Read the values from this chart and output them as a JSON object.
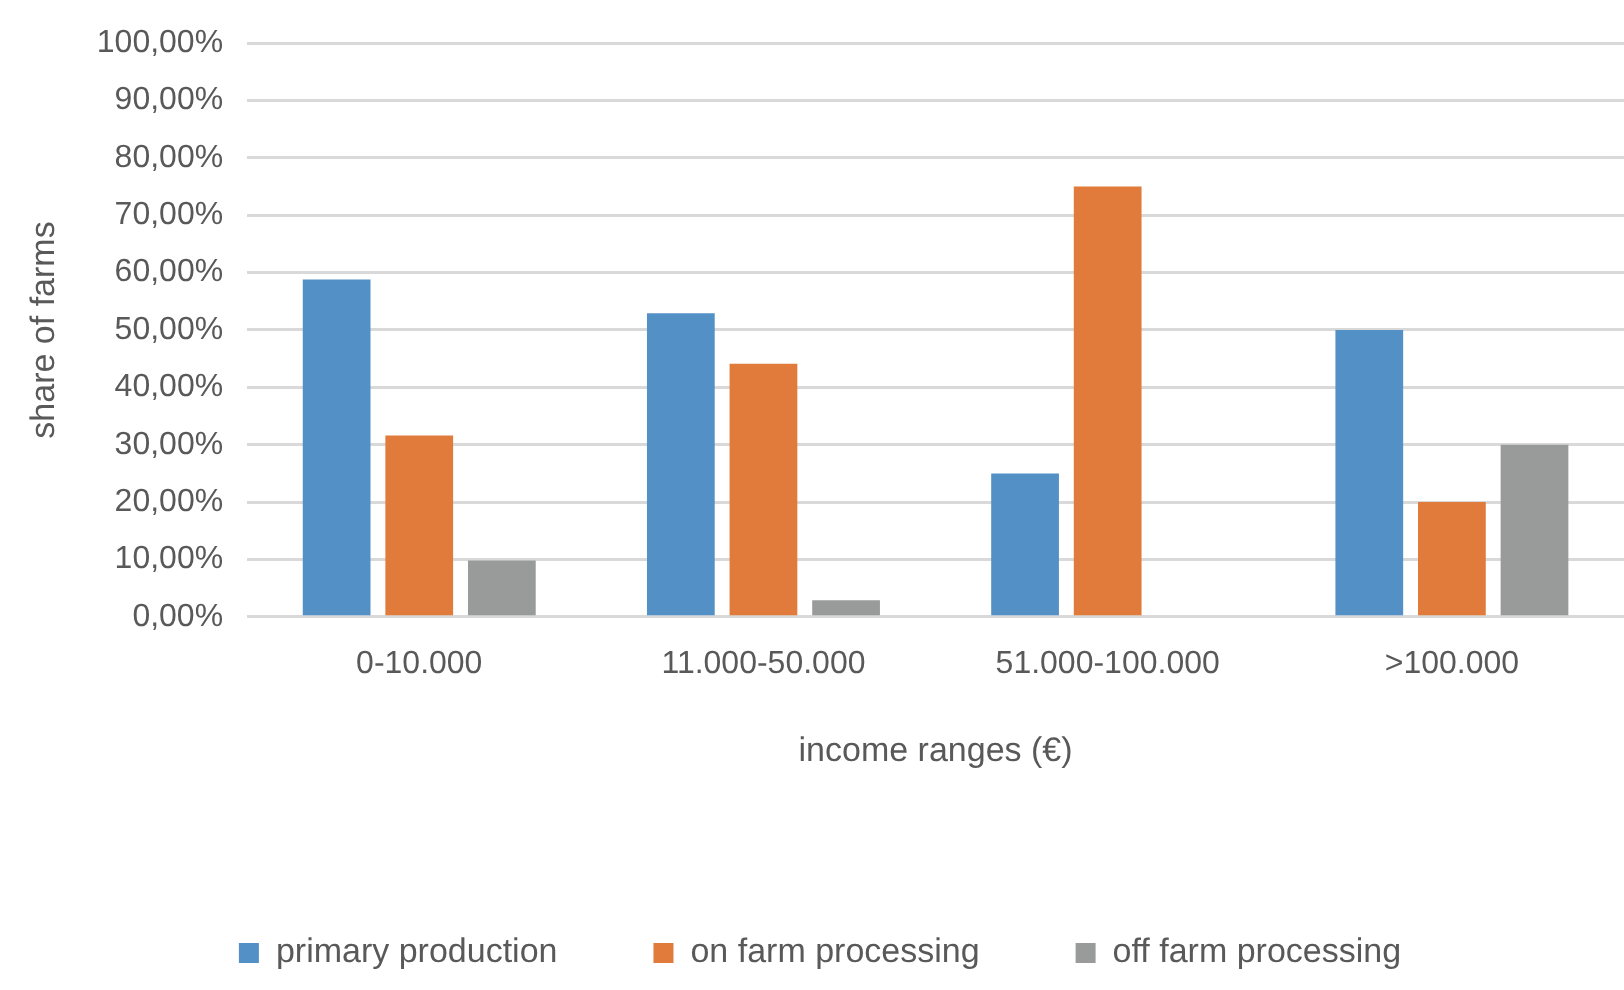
{
  "chart_data": {
    "type": "bar",
    "xlabel": "income ranges (€)",
    "ylabel": "share of farms",
    "categories": [
      "0-10.000",
      "11.000-50.000",
      "51.000-100.000",
      ">100.000"
    ],
    "series": [
      {
        "name": "primary production",
        "color": "#5390c6",
        "values": [
          58.8,
          52.9,
          25,
          50
        ]
      },
      {
        "name": "on farm processing",
        "color": "#e07b3b",
        "values": [
          31.6,
          44.1,
          75,
          20
        ]
      },
      {
        "name": "off farm processing",
        "color": "#999b9b",
        "values": [
          9.8,
          2.9,
          0,
          30
        ]
      }
    ],
    "ylim": [
      0,
      100
    ],
    "yticks": [
      {
        "value": 0,
        "label": "0,00%"
      },
      {
        "value": 10,
        "label": "10,00%"
      },
      {
        "value": 20,
        "label": "20,00%"
      },
      {
        "value": 30,
        "label": "30,00%"
      },
      {
        "value": 40,
        "label": "40,00%"
      },
      {
        "value": 50,
        "label": "50,00%"
      },
      {
        "value": 60,
        "label": "60,00%"
      },
      {
        "value": 70,
        "label": "70,00%"
      },
      {
        "value": 80,
        "label": "80,00%"
      },
      {
        "value": 90,
        "label": "90,00%"
      },
      {
        "value": 100,
        "label": "100,00%"
      }
    ],
    "grid": "y",
    "legend": "bottom"
  }
}
